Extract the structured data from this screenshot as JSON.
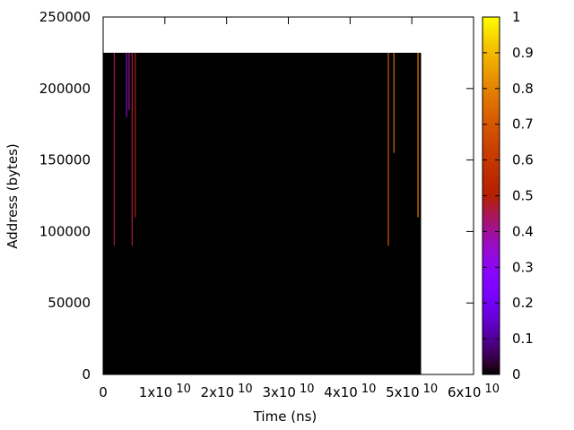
{
  "chart_data": {
    "type": "heatmap",
    "xlabel": "Time (ns)",
    "ylabel": "Address (bytes)",
    "xlim": [
      0,
      60000000000
    ],
    "ylim": [
      0,
      250000
    ],
    "x_ticks": [
      {
        "value": 0,
        "mantissa": "0",
        "exponent": ""
      },
      {
        "value": 10000000000,
        "mantissa": "1x10",
        "exponent": "10"
      },
      {
        "value": 20000000000,
        "mantissa": "2x10",
        "exponent": "10"
      },
      {
        "value": 30000000000,
        "mantissa": "3x10",
        "exponent": "10"
      },
      {
        "value": 40000000000,
        "mantissa": "4x10",
        "exponent": "10"
      },
      {
        "value": 50000000000,
        "mantissa": "5x10",
        "exponent": "10"
      },
      {
        "value": 60000000000,
        "mantissa": "6x10",
        "exponent": "10"
      }
    ],
    "y_ticks": [
      {
        "value": 0,
        "label": "0"
      },
      {
        "value": 50000,
        "label": "50000"
      },
      {
        "value": 100000,
        "label": "100000"
      },
      {
        "value": 150000,
        "label": "150000"
      },
      {
        "value": 200000,
        "label": "200000"
      },
      {
        "value": 250000,
        "label": "250000"
      }
    ],
    "colorbar": {
      "min": 0,
      "max": 1,
      "ticks": [
        {
          "value": 0,
          "label": "0"
        },
        {
          "value": 0.1,
          "label": "0.1"
        },
        {
          "value": 0.2,
          "label": "0.2"
        },
        {
          "value": 0.3,
          "label": "0.3"
        },
        {
          "value": 0.4,
          "label": "0.4"
        },
        {
          "value": 0.5,
          "label": "0.5"
        },
        {
          "value": 0.6,
          "label": "0.6"
        },
        {
          "value": 0.7,
          "label": "0.7"
        },
        {
          "value": 0.8,
          "label": "0.8"
        },
        {
          "value": 0.9,
          "label": "0.9"
        },
        {
          "value": 1,
          "label": "1"
        }
      ],
      "palette": "black-blue-purple-red-orange-yellow"
    },
    "background_region": {
      "x0": 0,
      "x1": 51500000000,
      "y0": 0,
      "y1": 225000,
      "value": 0
    },
    "streaks": [
      {
        "x": 1800000000,
        "y0": 90000,
        "y1": 225000,
        "value": 0.45
      },
      {
        "x": 3800000000,
        "y0": 180000,
        "y1": 225000,
        "value": 0.35
      },
      {
        "x": 4200000000,
        "y0": 185000,
        "y1": 225000,
        "value": 0.4
      },
      {
        "x": 4700000000,
        "y0": 90000,
        "y1": 225000,
        "value": 0.45
      },
      {
        "x": 5200000000,
        "y0": 110000,
        "y1": 225000,
        "value": 0.5
      },
      {
        "x": 46200000000,
        "y0": 90000,
        "y1": 225000,
        "value": 0.7
      },
      {
        "x": 47100000000,
        "y0": 155000,
        "y1": 225000,
        "value": 0.75
      },
      {
        "x": 51000000000,
        "y0": 110000,
        "y1": 225000,
        "value": 0.8
      }
    ]
  }
}
